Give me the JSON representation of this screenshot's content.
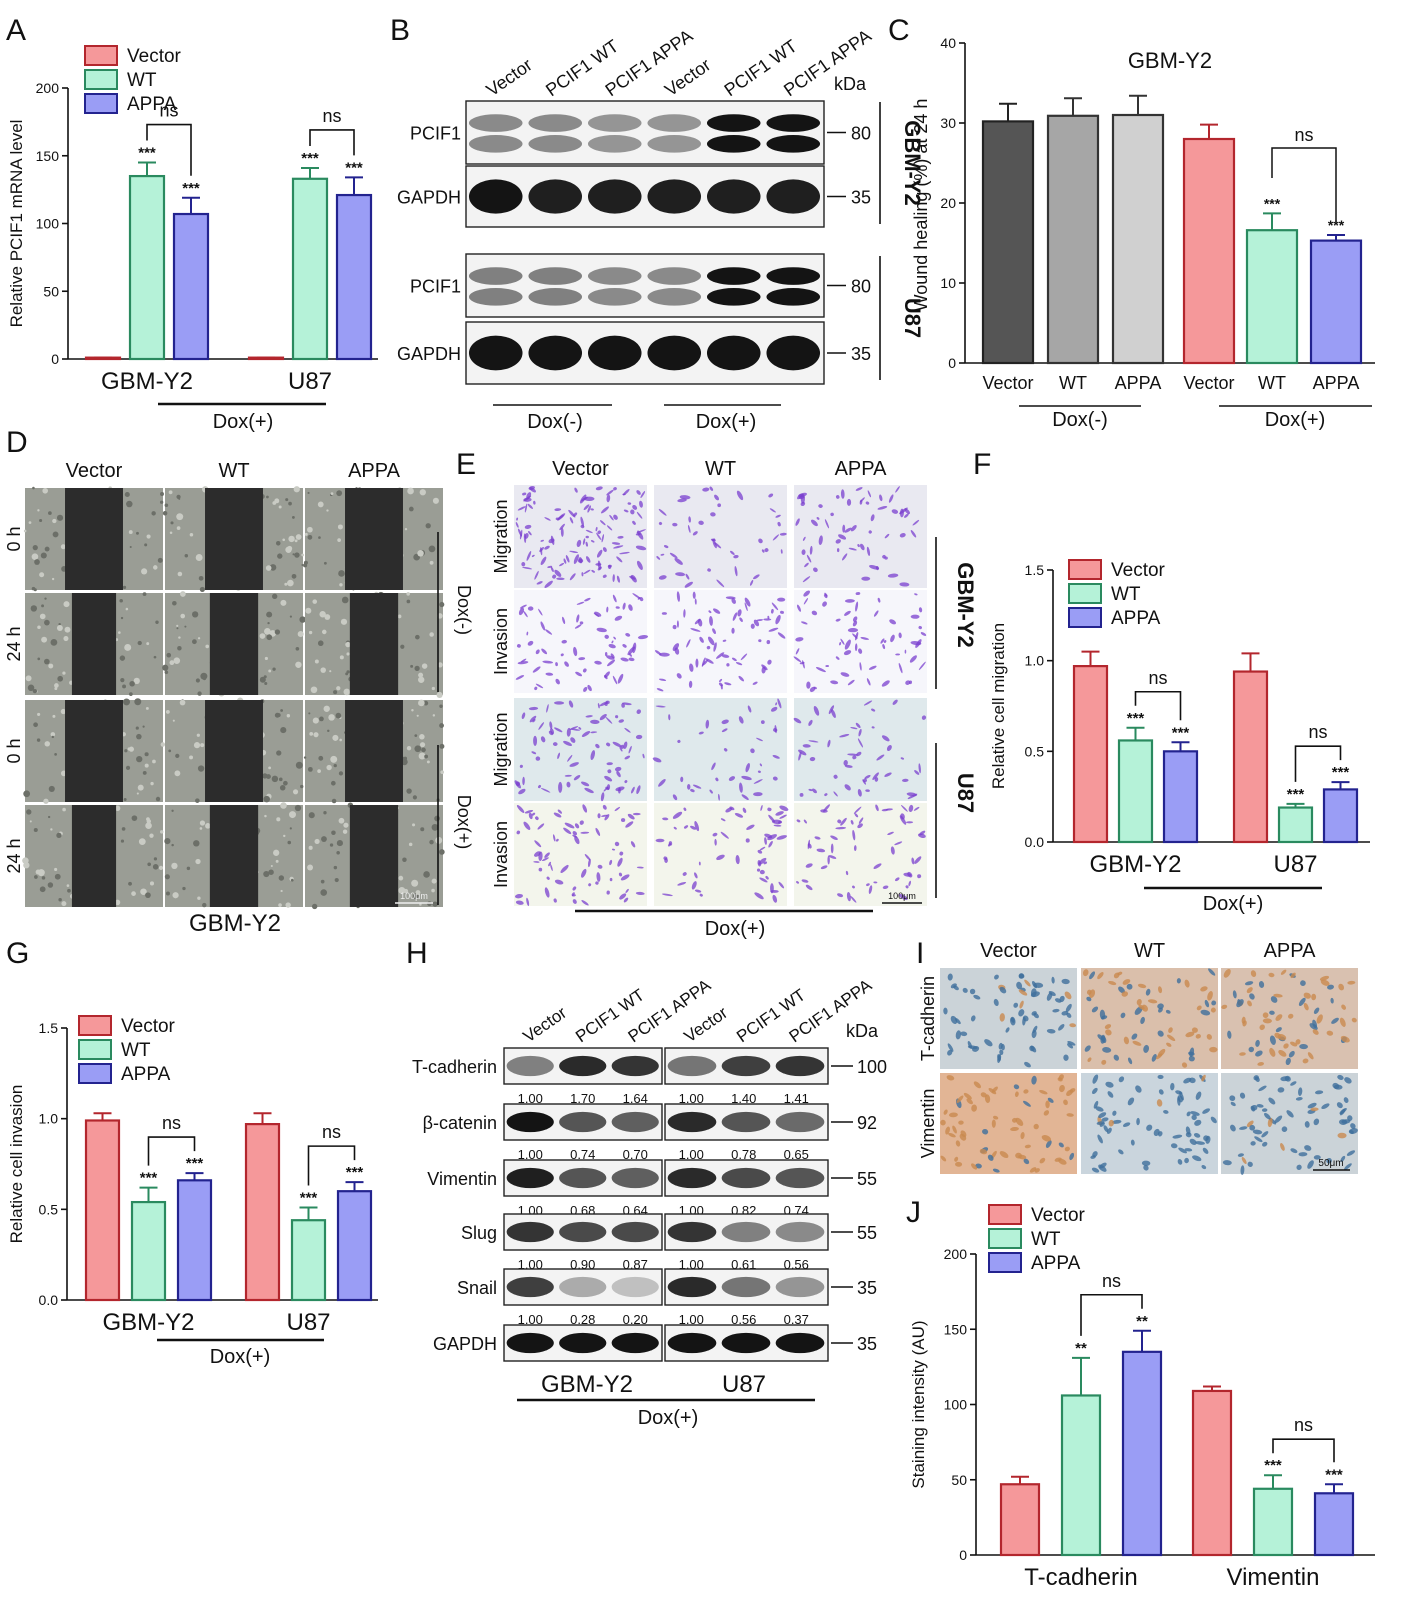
{
  "colors": {
    "vector": "#f5989a",
    "wt": "#b5f2d8",
    "appa": "#9a9df5",
    "vector_edge": "#b3262d",
    "wt_edge": "#2a8a5f",
    "appa_edge": "#23238f",
    "darkgray": "#555555",
    "gray": "#a6a6a6",
    "lightgray": "#d0d0d0",
    "scratch": "#2c2c2c",
    "cells": "#9a9d95",
    "crystal": "#7a3fcf",
    "ihc_brown": "#c98a4f",
    "ihc_blue": "#3e6f9c"
  },
  "legend": [
    "Vector",
    "WT",
    "APPA"
  ],
  "panel_letters": [
    "A",
    "B",
    "C",
    "D",
    "E",
    "F",
    "G",
    "H",
    "I",
    "J"
  ],
  "common": {
    "sig3": "***",
    "sig2": "**",
    "ns": "ns",
    "dox_pos": "Dox(+)",
    "dox_neg": "Dox(-)",
    "kda": "kDa",
    "gbm": "GBM-Y2",
    "u87": "U87",
    "scale100": "100μm",
    "scale50": "50μm"
  },
  "chart_data": [
    {
      "panel": "A",
      "type": "bar",
      "categories": [
        "GBM-Y2",
        "U87"
      ],
      "ylabel": "Relative PCIF1 mRNA level",
      "ylim": [
        0,
        200
      ],
      "yticks": [
        0,
        50,
        100,
        150,
        200
      ],
      "series": [
        {
          "name": "Vector",
          "values": [
            1,
            1
          ],
          "errors": [
            0,
            0
          ]
        },
        {
          "name": "WT",
          "values": [
            135,
            133
          ],
          "errors": [
            10,
            8
          ]
        },
        {
          "name": "APPA",
          "values": [
            107,
            121
          ],
          "errors": [
            12,
            13
          ]
        }
      ],
      "significance": [
        [
          "",
          "***",
          "***"
        ],
        [
          "",
          "***",
          "***"
        ]
      ],
      "comparison_label": "ns",
      "group_label": "Dox(+)"
    },
    {
      "panel": "C",
      "type": "bar",
      "title": "GBM-Y2",
      "categories": [
        "Vector",
        "WT",
        "APPA",
        "Vector",
        "WT",
        "APPA"
      ],
      "ylabel": "Wound healing (%) at 24 h",
      "ylim": [
        0,
        40
      ],
      "yticks": [
        0,
        10,
        20,
        30,
        40
      ],
      "values": [
        30.2,
        30.9,
        31.0,
        28.0,
        16.6,
        15.3
      ],
      "errors": [
        2.2,
        2.2,
        2.4,
        1.8,
        2.1,
        0.7
      ],
      "significance": [
        "",
        "",
        "",
        "",
        "***",
        "***"
      ],
      "comparison_label": "ns",
      "group_labels": [
        "Dox(-)",
        "Dox(+)"
      ]
    },
    {
      "panel": "F",
      "type": "bar",
      "categories": [
        "GBM-Y2",
        "U87"
      ],
      "ylabel": "Relative cell migration",
      "ylim": [
        0,
        1.5
      ],
      "yticks": [
        0.0,
        0.5,
        1.0,
        1.5
      ],
      "series": [
        {
          "name": "Vector",
          "values": [
            0.97,
            0.94
          ],
          "errors": [
            0.08,
            0.1
          ]
        },
        {
          "name": "WT",
          "values": [
            0.56,
            0.19
          ],
          "errors": [
            0.07,
            0.02
          ]
        },
        {
          "name": "APPA",
          "values": [
            0.5,
            0.29
          ],
          "errors": [
            0.05,
            0.04
          ]
        }
      ],
      "significance": [
        [
          "",
          "***",
          "***"
        ],
        [
          "",
          "***",
          "***"
        ]
      ],
      "comparison_label": "ns",
      "group_label": "Dox(+)"
    },
    {
      "panel": "G",
      "type": "bar",
      "categories": [
        "GBM-Y2",
        "U87"
      ],
      "ylabel": "Relative cell invasion",
      "ylim": [
        0,
        1.5
      ],
      "yticks": [
        0.0,
        0.5,
        1.0,
        1.5
      ],
      "series": [
        {
          "name": "Vector",
          "values": [
            0.99,
            0.97
          ],
          "errors": [
            0.04,
            0.06
          ]
        },
        {
          "name": "WT",
          "values": [
            0.54,
            0.44
          ],
          "errors": [
            0.08,
            0.07
          ]
        },
        {
          "name": "APPA",
          "values": [
            0.66,
            0.6
          ],
          "errors": [
            0.04,
            0.05
          ]
        }
      ],
      "significance": [
        [
          "",
          "***",
          "***"
        ],
        [
          "",
          "***",
          "***"
        ]
      ],
      "comparison_label": "ns",
      "group_label": "Dox(+)"
    },
    {
      "panel": "J",
      "type": "bar",
      "categories": [
        "T-cadherin",
        "Vimentin"
      ],
      "ylabel": "Staining intensity (AU)",
      "ylim": [
        0,
        200
      ],
      "yticks": [
        0,
        50,
        100,
        150,
        200
      ],
      "series": [
        {
          "name": "Vector",
          "values": [
            47,
            109
          ],
          "errors": [
            5,
            3
          ]
        },
        {
          "name": "WT",
          "values": [
            106,
            44
          ],
          "errors": [
            25,
            9
          ]
        },
        {
          "name": "APPA",
          "values": [
            135,
            41
          ],
          "errors": [
            14,
            6
          ]
        }
      ],
      "significance": [
        [
          "",
          "**",
          "**"
        ],
        [
          "",
          "***",
          "***"
        ]
      ],
      "comparison_label": "ns"
    }
  ],
  "blot_b": {
    "lanes": [
      "Vector",
      "PCIF1 WT",
      "PCIF1 APPA",
      "Vector",
      "PCIF1 WT",
      "PCIF1 APPA"
    ],
    "rows": [
      {
        "label": "PCIF1",
        "kda": "80",
        "cell": "GBM-Y2"
      },
      {
        "label": "GAPDH",
        "kda": "35",
        "cell": "GBM-Y2"
      },
      {
        "label": "PCIF1",
        "kda": "80",
        "cell": "U87"
      },
      {
        "label": "GAPDH",
        "kda": "35",
        "cell": "U87"
      }
    ],
    "groups": [
      "Dox(-)",
      "Dox(+)"
    ]
  },
  "blot_h": {
    "lanes": [
      "Vector",
      "PCIF1 WT",
      "PCIF1 APPA",
      "Vector",
      "PCIF1 WT",
      "PCIF1 APPA"
    ],
    "rows": [
      {
        "label": "T-cadherin",
        "kda": "100",
        "quant": [
          "1.00",
          "1.70",
          "1.64",
          "1.00",
          "1.40",
          "1.41"
        ]
      },
      {
        "label": "β-catenin",
        "kda": "92",
        "quant": [
          "1.00",
          "0.74",
          "0.70",
          "1.00",
          "0.78",
          "0.65"
        ]
      },
      {
        "label": "Vimentin",
        "kda": "55",
        "quant": [
          "1.00",
          "0.68",
          "0.64",
          "1.00",
          "0.82",
          "0.74"
        ]
      },
      {
        "label": "Slug",
        "kda": "55",
        "quant": [
          "1.00",
          "0.90",
          "0.87",
          "1.00",
          "0.61",
          "0.56"
        ]
      },
      {
        "label": "Snail",
        "kda": "35",
        "quant": [
          "1.00",
          "0.28",
          "0.20",
          "1.00",
          "0.56",
          "0.37"
        ]
      },
      {
        "label": "GAPDH",
        "kda": "35",
        "quant": []
      }
    ],
    "cells": [
      "GBM-Y2",
      "U87"
    ],
    "group": "Dox(+)"
  },
  "panel_d": {
    "columns": [
      "Vector",
      "WT",
      "APPA"
    ],
    "rows": [
      "0 h",
      "24 h",
      "0 h",
      "24 h"
    ],
    "groups": [
      "Dox(-)",
      "Dox(+)"
    ],
    "caption": "GBM-Y2"
  },
  "panel_e": {
    "columns": [
      "Vector",
      "WT",
      "APPA"
    ],
    "rows": [
      "Migration",
      "Invasion",
      "Migration",
      "Invasion"
    ],
    "cells": [
      "GBM-Y2",
      "U87"
    ],
    "group": "Dox(+)"
  },
  "panel_i": {
    "columns": [
      "Vector",
      "WT",
      "APPA"
    ],
    "rows": [
      "T-cadherin",
      "Vimentin"
    ]
  }
}
